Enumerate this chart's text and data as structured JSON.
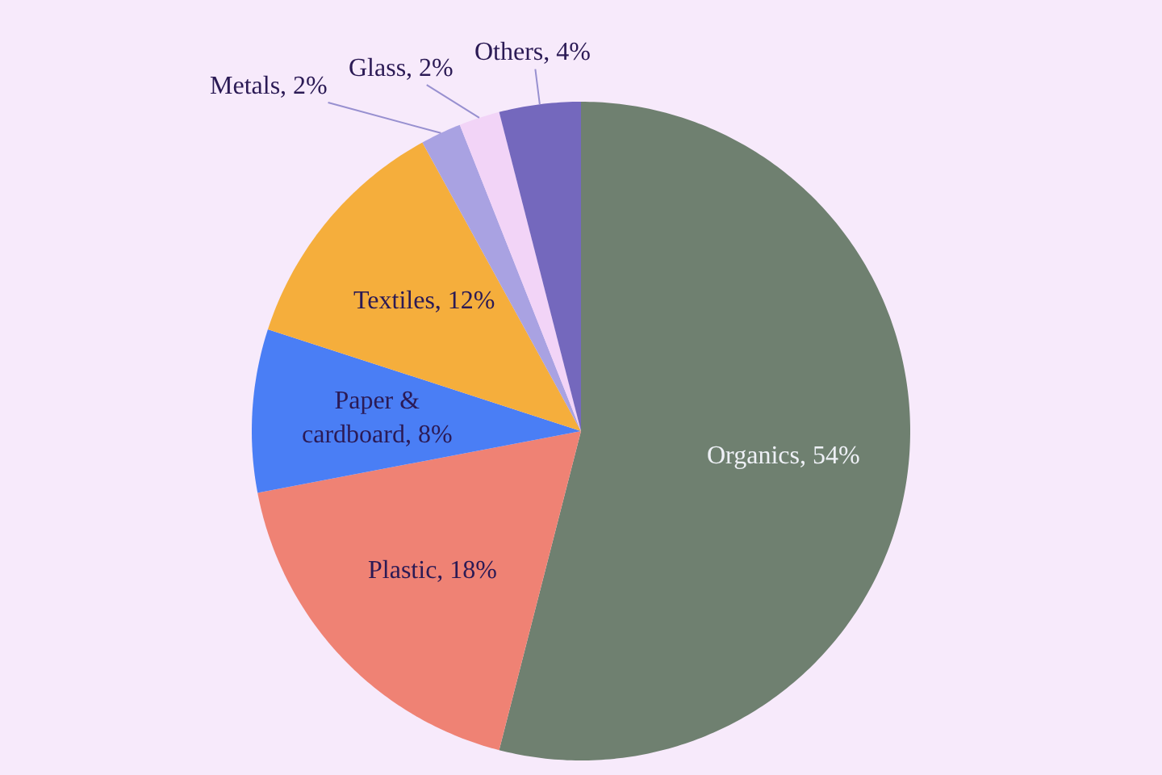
{
  "chart_data": {
    "type": "pie",
    "categories": [
      "Organics, 54%",
      "Plastic, 18%",
      "Paper & cardboard, 8%",
      "Textiles, 12%",
      "Metals, 2%",
      "Glass, 2%",
      "Others, 4%"
    ],
    "values": [
      54,
      18,
      8,
      12,
      2,
      2,
      4
    ],
    "colors": [
      "#6f8070",
      "#ef8274",
      "#4a7ef5",
      "#f5ae3c",
      "#a9a2e2",
      "#f2d4f7",
      "#7468bd"
    ]
  }
}
